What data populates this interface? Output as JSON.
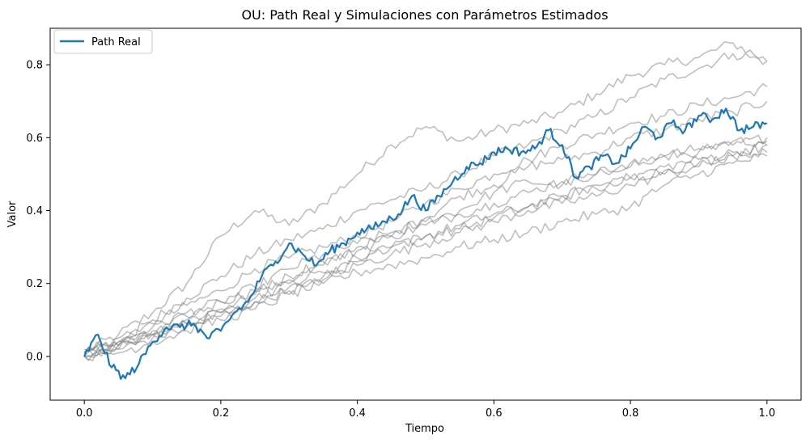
{
  "chart_data": {
    "type": "line",
    "title": "OU: Path Real y Simulaciones con Parámetros Estimados",
    "xlabel": "Tiempo",
    "ylabel": "Valor",
    "xlim": [
      -0.05,
      1.05
    ],
    "ylim": [
      -0.12,
      0.9
    ],
    "x_ticks": [
      0.0,
      0.2,
      0.4,
      0.6,
      0.8,
      1.0
    ],
    "x_tick_labels": [
      "0.0",
      "0.2",
      "0.4",
      "0.6",
      "0.8",
      "1.0"
    ],
    "y_ticks": [
      0.0,
      0.2,
      0.4,
      0.6,
      0.8
    ],
    "y_tick_labels": [
      "0.0",
      "0.2",
      "0.4",
      "0.6",
      "0.8"
    ],
    "grid": false,
    "legend": {
      "position": "top-left",
      "entries": [
        "Path Real"
      ]
    },
    "colors": {
      "real": "#1f77b4",
      "simulations": "#808080"
    },
    "series": [
      {
        "name": "Path Real",
        "color": "#1f77b4",
        "x": [
          0.0,
          0.02,
          0.04,
          0.06,
          0.08,
          0.1,
          0.12,
          0.14,
          0.16,
          0.18,
          0.2,
          0.22,
          0.24,
          0.26,
          0.28,
          0.3,
          0.32,
          0.34,
          0.36,
          0.38,
          0.4,
          0.42,
          0.44,
          0.46,
          0.48,
          0.5,
          0.52,
          0.54,
          0.56,
          0.58,
          0.6,
          0.62,
          0.64,
          0.66,
          0.68,
          0.7,
          0.72,
          0.74,
          0.76,
          0.78,
          0.8,
          0.82,
          0.84,
          0.86,
          0.88,
          0.9,
          0.92,
          0.94,
          0.96,
          0.98,
          1.0
        ],
        "values": [
          0.0,
          0.06,
          -0.03,
          -0.06,
          -0.02,
          0.04,
          0.08,
          0.08,
          0.09,
          0.05,
          0.07,
          0.12,
          0.15,
          0.22,
          0.26,
          0.31,
          0.28,
          0.25,
          0.29,
          0.31,
          0.34,
          0.35,
          0.37,
          0.39,
          0.44,
          0.4,
          0.44,
          0.48,
          0.52,
          0.53,
          0.56,
          0.57,
          0.56,
          0.57,
          0.62,
          0.58,
          0.49,
          0.52,
          0.55,
          0.53,
          0.57,
          0.63,
          0.6,
          0.64,
          0.62,
          0.66,
          0.65,
          0.68,
          0.62,
          0.63,
          0.64
        ]
      }
    ],
    "simulations": [
      {
        "x": [
          0.0,
          0.05,
          0.1,
          0.15,
          0.2,
          0.25,
          0.3,
          0.35,
          0.4,
          0.45,
          0.5,
          0.55,
          0.6,
          0.65,
          0.7,
          0.75,
          0.8,
          0.85,
          0.9,
          0.95,
          1.0
        ],
        "values": [
          0.01,
          0.06,
          0.12,
          0.2,
          0.33,
          0.4,
          0.36,
          0.42,
          0.5,
          0.58,
          0.63,
          0.59,
          0.62,
          0.64,
          0.67,
          0.72,
          0.77,
          0.8,
          0.82,
          0.86,
          0.81
        ]
      },
      {
        "x": [
          0.0,
          0.05,
          0.1,
          0.15,
          0.2,
          0.25,
          0.3,
          0.35,
          0.4,
          0.45,
          0.5,
          0.55,
          0.6,
          0.65,
          0.7,
          0.75,
          0.8,
          0.85,
          0.9,
          0.95,
          1.0
        ],
        "values": [
          0.0,
          0.03,
          0.1,
          0.16,
          0.22,
          0.28,
          0.32,
          0.35,
          0.4,
          0.43,
          0.46,
          0.5,
          0.55,
          0.58,
          0.62,
          0.66,
          0.71,
          0.76,
          0.79,
          0.83,
          0.81
        ]
      },
      {
        "x": [
          0.0,
          0.05,
          0.1,
          0.15,
          0.2,
          0.25,
          0.3,
          0.35,
          0.4,
          0.45,
          0.5,
          0.55,
          0.6,
          0.65,
          0.7,
          0.75,
          0.8,
          0.85,
          0.9,
          0.95,
          1.0
        ],
        "values": [
          0.01,
          0.05,
          0.09,
          0.14,
          0.18,
          0.24,
          0.27,
          0.3,
          0.33,
          0.37,
          0.42,
          0.46,
          0.5,
          0.54,
          0.58,
          0.61,
          0.64,
          0.66,
          0.69,
          0.71,
          0.74
        ]
      },
      {
        "x": [
          0.0,
          0.05,
          0.1,
          0.15,
          0.2,
          0.25,
          0.3,
          0.35,
          0.4,
          0.45,
          0.5,
          0.55,
          0.6,
          0.65,
          0.7,
          0.75,
          0.8,
          0.85,
          0.9,
          0.95,
          1.0
        ],
        "values": [
          0.0,
          0.04,
          0.06,
          0.11,
          0.15,
          0.18,
          0.21,
          0.25,
          0.3,
          0.33,
          0.38,
          0.44,
          0.47,
          0.52,
          0.54,
          0.56,
          0.6,
          0.62,
          0.65,
          0.67,
          0.7
        ]
      },
      {
        "x": [
          0.0,
          0.05,
          0.1,
          0.15,
          0.2,
          0.25,
          0.3,
          0.35,
          0.4,
          0.45,
          0.5,
          0.55,
          0.6,
          0.65,
          0.7,
          0.75,
          0.8,
          0.85,
          0.9,
          0.95,
          1.0
        ],
        "values": [
          0.02,
          0.04,
          0.08,
          0.12,
          0.15,
          0.19,
          0.24,
          0.28,
          0.31,
          0.34,
          0.37,
          0.4,
          0.45,
          0.48,
          0.47,
          0.5,
          0.53,
          0.55,
          0.56,
          0.58,
          0.6
        ]
      },
      {
        "x": [
          0.0,
          0.05,
          0.1,
          0.15,
          0.2,
          0.25,
          0.3,
          0.35,
          0.4,
          0.45,
          0.5,
          0.55,
          0.6,
          0.65,
          0.7,
          0.75,
          0.8,
          0.85,
          0.9,
          0.95,
          1.0
        ],
        "values": [
          0.0,
          0.03,
          0.07,
          0.1,
          0.13,
          0.17,
          0.22,
          0.26,
          0.29,
          0.33,
          0.36,
          0.39,
          0.42,
          0.45,
          0.48,
          0.5,
          0.52,
          0.55,
          0.57,
          0.59,
          0.59
        ]
      },
      {
        "x": [
          0.0,
          0.05,
          0.1,
          0.15,
          0.2,
          0.25,
          0.3,
          0.35,
          0.4,
          0.45,
          0.5,
          0.55,
          0.6,
          0.65,
          0.7,
          0.75,
          0.8,
          0.85,
          0.9,
          0.95,
          1.0
        ],
        "values": [
          0.01,
          0.02,
          0.06,
          0.09,
          0.12,
          0.15,
          0.19,
          0.22,
          0.26,
          0.3,
          0.33,
          0.36,
          0.39,
          0.41,
          0.44,
          0.47,
          0.49,
          0.52,
          0.54,
          0.56,
          0.58
        ]
      },
      {
        "x": [
          0.0,
          0.05,
          0.1,
          0.15,
          0.2,
          0.25,
          0.3,
          0.35,
          0.4,
          0.45,
          0.5,
          0.55,
          0.6,
          0.65,
          0.7,
          0.75,
          0.8,
          0.85,
          0.9,
          0.95,
          1.0
        ],
        "values": [
          0.0,
          0.02,
          0.05,
          0.08,
          0.11,
          0.15,
          0.18,
          0.21,
          0.25,
          0.28,
          0.31,
          0.34,
          0.37,
          0.4,
          0.42,
          0.44,
          0.47,
          0.5,
          0.52,
          0.55,
          0.56
        ]
      },
      {
        "x": [
          0.0,
          0.05,
          0.1,
          0.15,
          0.2,
          0.25,
          0.3,
          0.35,
          0.4,
          0.45,
          0.5,
          0.55,
          0.6,
          0.65,
          0.7,
          0.75,
          0.8,
          0.85,
          0.9,
          0.95,
          1.0
        ],
        "values": [
          0.01,
          0.03,
          0.06,
          0.09,
          0.12,
          0.16,
          0.2,
          0.23,
          0.27,
          0.3,
          0.33,
          0.35,
          0.38,
          0.41,
          0.44,
          0.46,
          0.49,
          0.51,
          0.53,
          0.55,
          0.58
        ]
      },
      {
        "x": [
          0.0,
          0.05,
          0.1,
          0.15,
          0.2,
          0.25,
          0.3,
          0.35,
          0.4,
          0.45,
          0.5,
          0.55,
          0.6,
          0.65,
          0.7,
          0.75,
          0.8,
          0.85,
          0.9,
          0.95,
          1.0
        ],
        "values": [
          0.0,
          0.01,
          0.04,
          0.07,
          0.1,
          0.13,
          0.17,
          0.2,
          0.23,
          0.25,
          0.27,
          0.3,
          0.32,
          0.34,
          0.37,
          0.39,
          0.41,
          0.47,
          0.5,
          0.53,
          0.55
        ]
      }
    ]
  }
}
